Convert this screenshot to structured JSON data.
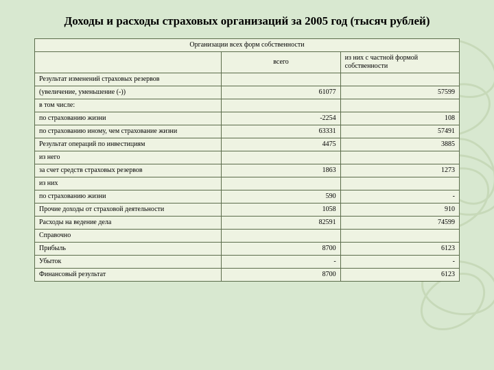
{
  "title": "Доходы и расходы страховых организаций за 2005 год (тысяч рублей)",
  "header": {
    "top": "Организации всех форм собственности",
    "col1": "всего",
    "col2": "из них с частной формой собственности"
  },
  "rows": [
    {
      "label": "Результат изменений страховых резервов",
      "v1": "",
      "v2": ""
    },
    {
      "label": "(увеличение, уменьшение (-))",
      "v1": "61077",
      "v2": "57599"
    },
    {
      "label": "в том числе:",
      "v1": "",
      "v2": ""
    },
    {
      "label": "по страхованию жизни",
      "v1": "-2254",
      "v2": "108"
    },
    {
      "label": "по страхованию иному, чем страхование жизни",
      "v1": "63331",
      "v2": "57491"
    },
    {
      "label": "Результат операций по инвестициям",
      "v1": "4475",
      "v2": "3885"
    },
    {
      "label": "из него",
      "v1": "",
      "v2": ""
    },
    {
      "label": "за счет средств страховых резервов",
      "v1": "1863",
      "v2": "1273"
    },
    {
      "label": "из них",
      "v1": "",
      "v2": ""
    },
    {
      "label": "по страхованию жизни",
      "v1": "590",
      "v2": "-"
    },
    {
      "label": "Прочие доходы от страховой деятельности",
      "v1": "1058",
      "v2": "910"
    },
    {
      "label": "Расходы на ведение дела",
      "v1": "82591",
      "v2": "74599"
    },
    {
      "label": "Справочно",
      "v1": "",
      "v2": ""
    },
    {
      "label": "Прибыль",
      "v1": "8700",
      "v2": "6123"
    },
    {
      "label": "Убыток",
      "v1": "-",
      "v2": "-"
    },
    {
      "label": "Финансовый результат",
      "v1": "8700",
      "v2": "6123"
    }
  ],
  "style": {
    "background": "#d8e8d0",
    "cell_bg": "#eef3e2",
    "border": "#5a6b4a",
    "deco_stroke": "#a8c090"
  }
}
